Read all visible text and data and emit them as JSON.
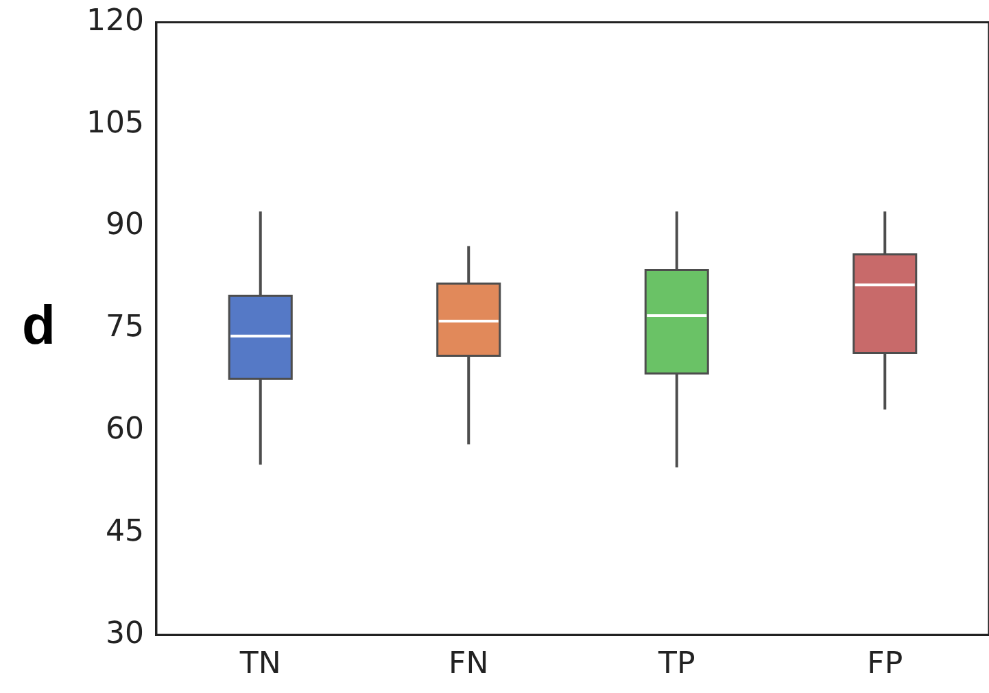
{
  "chart_data": {
    "type": "box",
    "categories": [
      "TN",
      "FN",
      "TP",
      "FP"
    ],
    "boxes": [
      {
        "low": 55,
        "q1": 67.6,
        "median": 73.9,
        "q3": 79.8,
        "high": 92.2
      },
      {
        "low": 58,
        "q1": 71,
        "median": 76.1,
        "q3": 81.6,
        "high": 87.1
      },
      {
        "low": 54.6,
        "q1": 68.4,
        "median": 76.9,
        "q3": 83.6,
        "high": 92.2
      },
      {
        "low": 63.1,
        "q1": 71.4,
        "median": 81.4,
        "q3": 85.9,
        "high": 92.2
      }
    ],
    "colors": [
      "#5579c6",
      "#e1895a",
      "#6ac266",
      "#c86a6a"
    ],
    "ylim": [
      30,
      120
    ],
    "yticks": [
      30,
      45,
      60,
      75,
      90,
      105,
      120
    ],
    "annotations": [
      "d"
    ],
    "grid": false,
    "legend": false
  }
}
